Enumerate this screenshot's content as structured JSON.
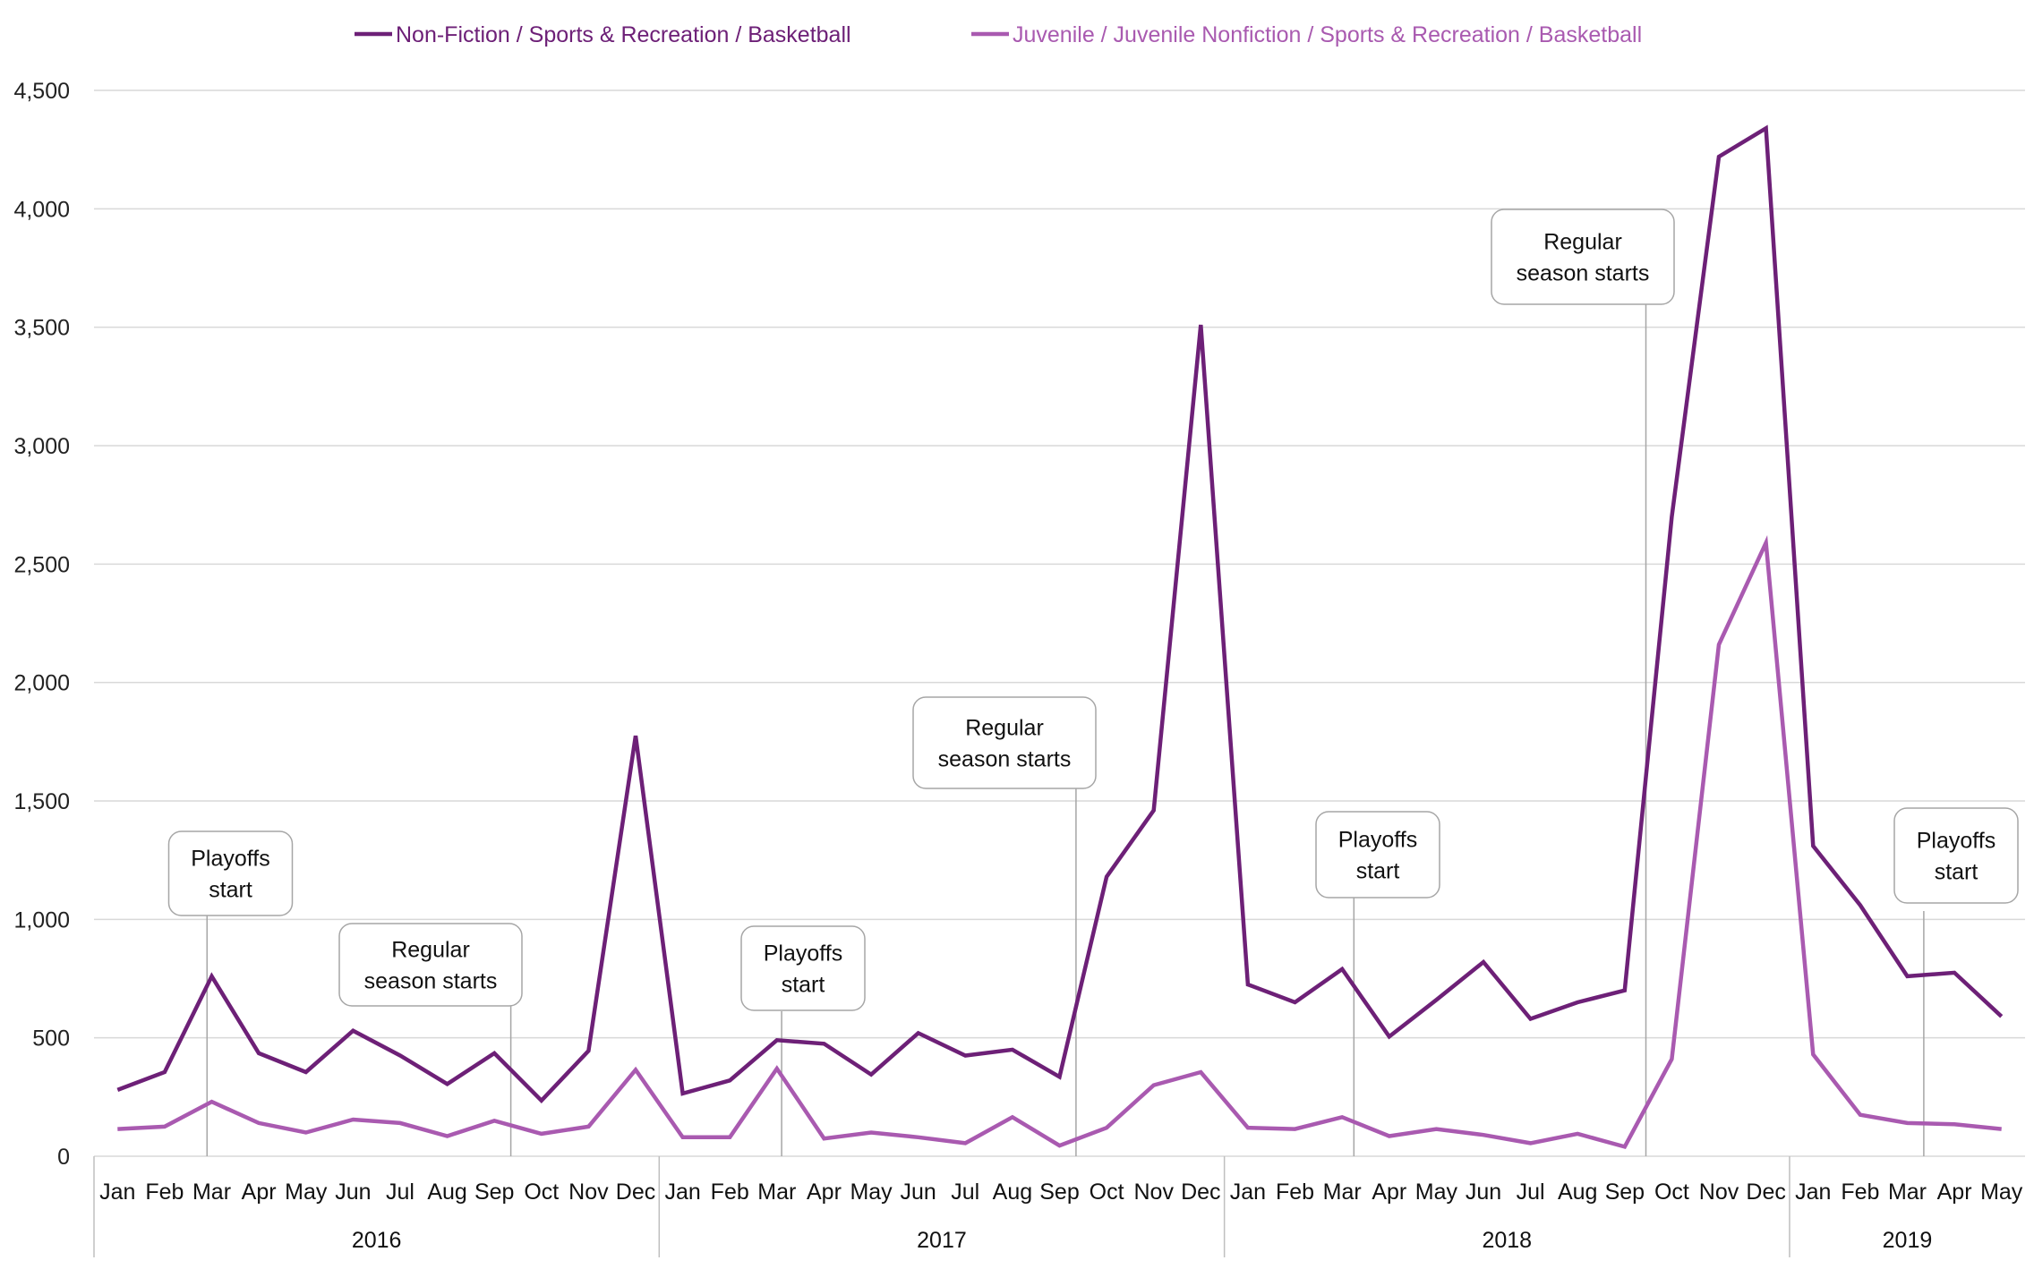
{
  "chart_data": {
    "type": "line",
    "title": "",
    "xlabel": "",
    "ylabel": "",
    "ylim": [
      0,
      4500
    ],
    "y_ticks": [
      0,
      500,
      1000,
      1500,
      2000,
      2500,
      3000,
      3500,
      4000,
      4500
    ],
    "y_tick_labels": [
      "0",
      "500",
      "1,000",
      "1,500",
      "2,000",
      "2,500",
      "3,000",
      "3,500",
      "4,000",
      "4,500"
    ],
    "grid": "horizontal",
    "legend_position": "top-center",
    "categories": [
      "Jan",
      "Feb",
      "Mar",
      "Apr",
      "May",
      "Jun",
      "Jul",
      "Aug",
      "Sep",
      "Oct",
      "Nov",
      "Dec",
      "Jan",
      "Feb",
      "Mar",
      "Apr",
      "May",
      "Jun",
      "Jul",
      "Aug",
      "Sep",
      "Oct",
      "Nov",
      "Dec",
      "Jan",
      "Feb",
      "Mar",
      "Apr",
      "May",
      "Jun",
      "Jul",
      "Aug",
      "Sep",
      "Oct",
      "Nov",
      "Dec",
      "Jan",
      "Feb",
      "Mar",
      "Apr",
      "May"
    ],
    "year_groups": [
      {
        "label": "2016",
        "start": 0,
        "count": 12
      },
      {
        "label": "2017",
        "start": 12,
        "count": 12
      },
      {
        "label": "2018",
        "start": 24,
        "count": 12
      },
      {
        "label": "2019",
        "start": 36,
        "count": 5
      }
    ],
    "series": [
      {
        "name": "Non-Fiction / Sports & Recreation / Basketball",
        "color": "#6d2077",
        "values": [
          280,
          355,
          760,
          435,
          355,
          530,
          425,
          305,
          435,
          235,
          445,
          1775,
          265,
          320,
          490,
          475,
          345,
          520,
          425,
          450,
          335,
          1180,
          1460,
          3510,
          725,
          650,
          790,
          505,
          660,
          820,
          580,
          650,
          700,
          2700,
          4220,
          4340,
          1310,
          1060,
          760,
          775,
          590
        ]
      },
      {
        "name": "Juvenile / Juvenile Nonfiction / Sports & Recreation / Basketball",
        "color": "#a95ab0",
        "values": [
          115,
          125,
          230,
          140,
          100,
          155,
          140,
          85,
          150,
          95,
          125,
          365,
          80,
          80,
          370,
          75,
          100,
          80,
          55,
          165,
          45,
          120,
          300,
          355,
          120,
          115,
          165,
          85,
          115,
          90,
          55,
          95,
          40,
          410,
          2160,
          2590,
          430,
          175,
          140,
          135,
          115
        ]
      }
    ],
    "annotations": [
      {
        "text_lines": [
          "Playoffs",
          "start"
        ],
        "index": 2.4
      },
      {
        "text_lines": [
          "Regular",
          "season starts"
        ],
        "index": 8.85
      },
      {
        "text_lines": [
          "Playoffs",
          "start"
        ],
        "index": 14.6
      },
      {
        "text_lines": [
          "Regular",
          "season starts"
        ],
        "index": 20.85
      },
      {
        "text_lines": [
          "Playoffs",
          "start"
        ],
        "index": 26.75
      },
      {
        "text_lines": [
          "Regular",
          "season starts"
        ],
        "index": 32.95
      },
      {
        "text_lines": [
          "Playoffs",
          "start"
        ],
        "index": 38.85
      }
    ]
  }
}
